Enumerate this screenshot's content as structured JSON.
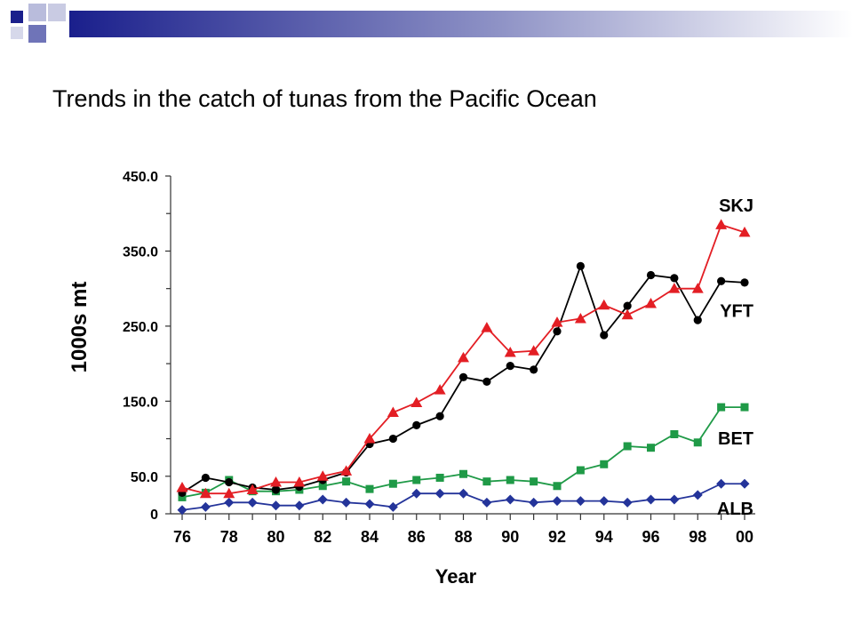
{
  "slide": {
    "title": "Trends in the catch of tunas from the Pacific Ocean"
  },
  "colors": {
    "deco_navy": "#1a1f8c",
    "deco_blue": "#6f74b8",
    "deco_light": "#b9bcdc"
  },
  "chart_data": {
    "type": "line",
    "title": "",
    "xlabel": "Year",
    "ylabel": "1000s mt",
    "xlim": [
      1976,
      2000
    ],
    "ylim": [
      0,
      450
    ],
    "x_ticks": [
      1976,
      1978,
      1980,
      1982,
      1984,
      1986,
      1988,
      1990,
      1992,
      1994,
      1996,
      1998,
      2000
    ],
    "x_tick_labels": [
      "76",
      "78",
      "80",
      "82",
      "84",
      "86",
      "88",
      "90",
      "92",
      "94",
      "96",
      "98",
      "00"
    ],
    "y_ticks": [
      0,
      50,
      150,
      250,
      350,
      450
    ],
    "y_tick_labels": [
      "0",
      "50.0",
      "150.0",
      "250.0",
      "350.0",
      "450.0"
    ],
    "y_minor_ticks": [
      100,
      200,
      300,
      400
    ],
    "grid": false,
    "x": [
      1976,
      1977,
      1978,
      1979,
      1980,
      1981,
      1982,
      1983,
      1984,
      1985,
      1986,
      1987,
      1988,
      1989,
      1990,
      1991,
      1992,
      1993,
      1994,
      1995,
      1996,
      1997,
      1998,
      1999,
      2000
    ],
    "series": [
      {
        "name": "SKJ",
        "color": "#e31e24",
        "marker": "triangle",
        "values": [
          35,
          27,
          27,
          32,
          42,
          42,
          50,
          57,
          100,
          135,
          148,
          165,
          208,
          248,
          215,
          217,
          255,
          260,
          278,
          265,
          280,
          300,
          300,
          385,
          375
        ]
      },
      {
        "name": "YFT",
        "color": "#000000",
        "marker": "circle",
        "values": [
          28,
          48,
          42,
          35,
          32,
          36,
          45,
          55,
          93,
          100,
          118,
          130,
          182,
          176,
          197,
          192,
          243,
          330,
          238,
          277,
          318,
          314,
          258,
          310,
          308
        ]
      },
      {
        "name": "BET",
        "color": "#1f9a47",
        "marker": "square",
        "values": [
          22,
          28,
          45,
          30,
          30,
          32,
          37,
          43,
          33,
          40,
          45,
          48,
          53,
          43,
          45,
          43,
          37,
          58,
          66,
          90,
          88,
          106,
          95,
          142,
          142
        ]
      },
      {
        "name": "ALB",
        "color": "#24349a",
        "marker": "diamond",
        "values": [
          5,
          9,
          15,
          15,
          11,
          11,
          19,
          15,
          13,
          9,
          27,
          27,
          27,
          15,
          19,
          15,
          17,
          17,
          17,
          15,
          19,
          19,
          25,
          40,
          40
        ]
      }
    ],
    "series_labels": [
      {
        "text": "SKJ",
        "x": 2000,
        "y": 412
      },
      {
        "text": "YFT",
        "x": 2000,
        "y": 272
      },
      {
        "text": "BET",
        "x": 2000,
        "y": 102
      },
      {
        "text": "ALB",
        "x": 2000,
        "y": 8
      }
    ]
  }
}
